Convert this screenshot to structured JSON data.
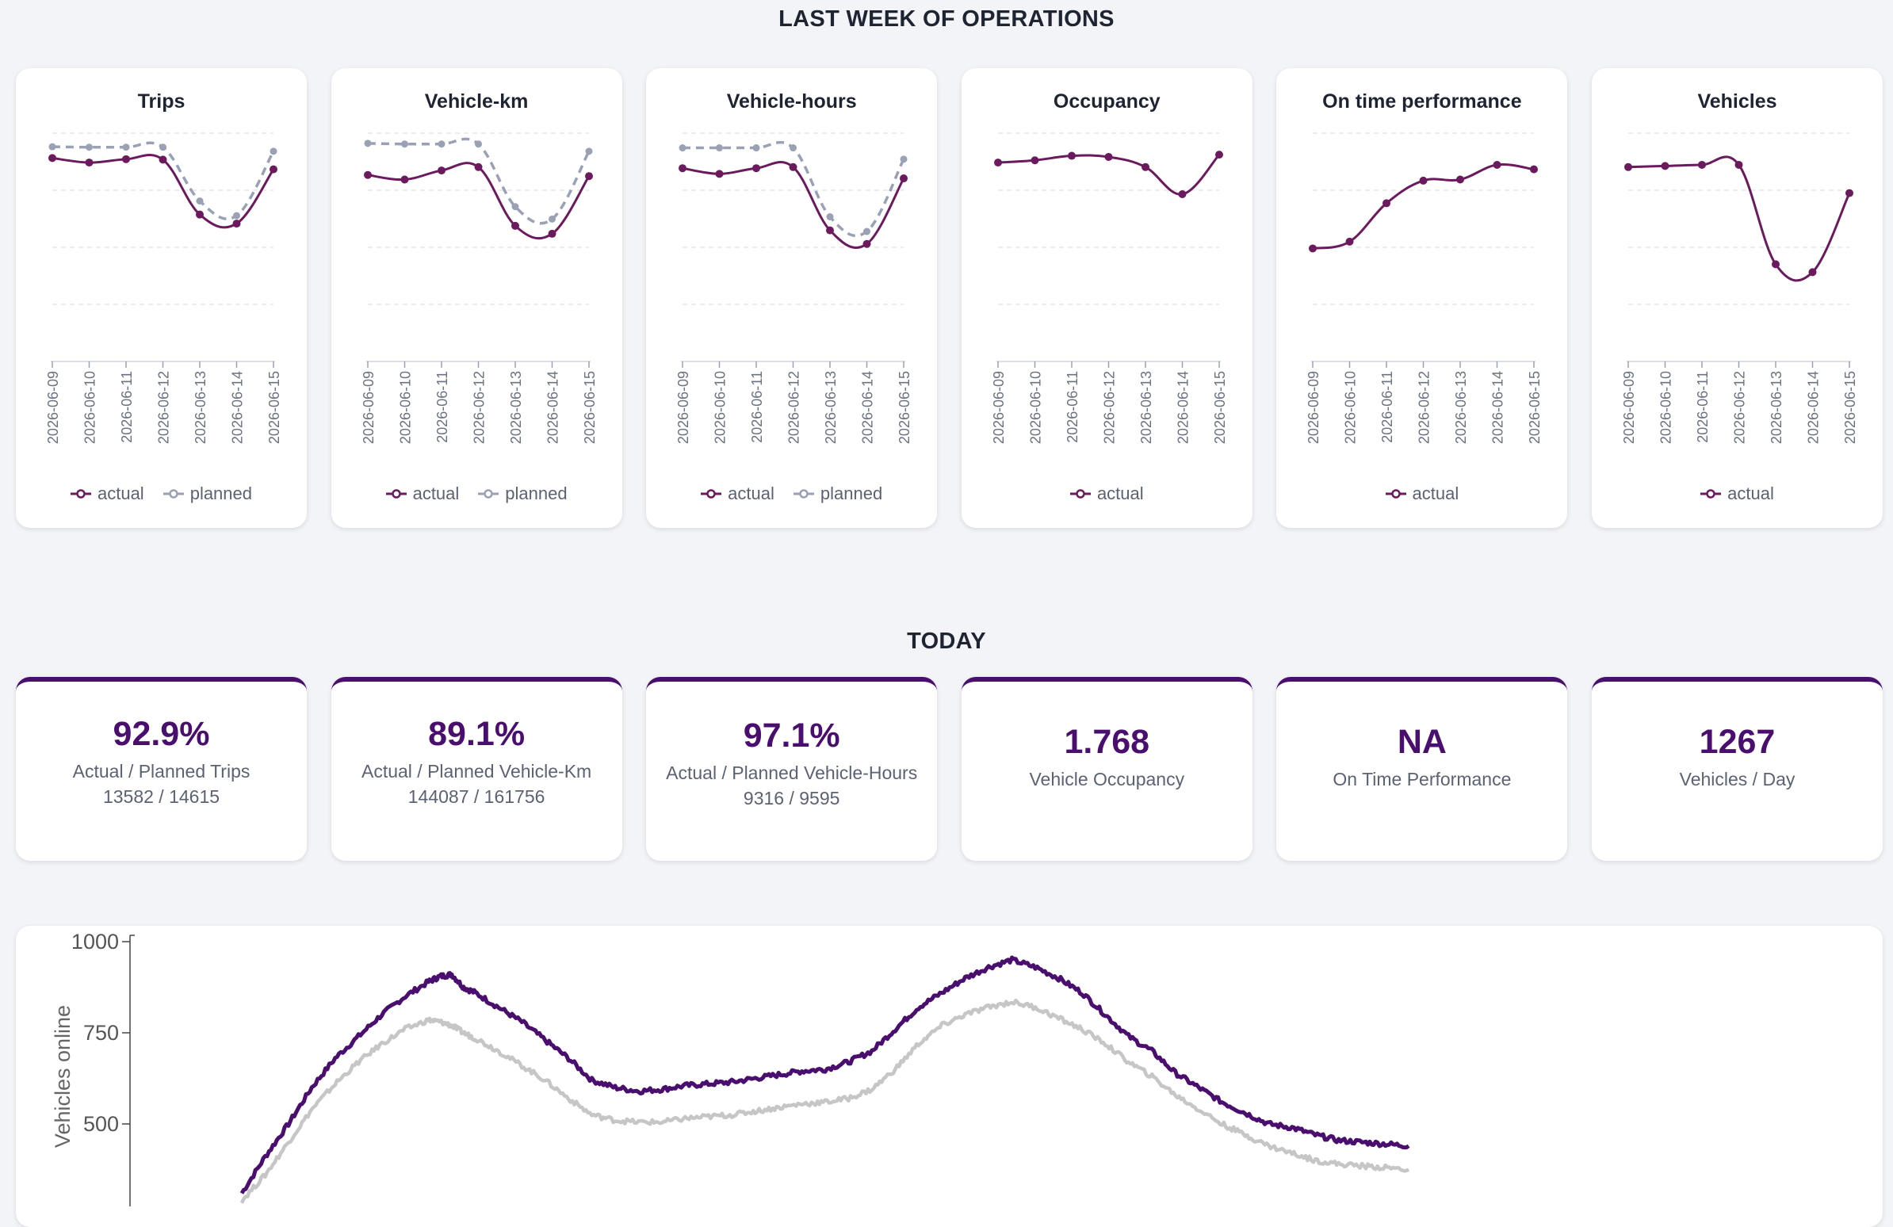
{
  "section_week_title": "LAST WEEK OF OPERATIONS",
  "section_today_title": "TODAY",
  "colors": {
    "actual": "#6b1a5e",
    "planned": "#9aa1b4",
    "kpi": "#4a0e6e",
    "grey_series": "#c6c6c6"
  },
  "weekly_charts": [
    {
      "title": "Trips",
      "legend": [
        "actual",
        "planned"
      ],
      "dates": [
        "2026-06-09",
        "2026-06-10",
        "2026-06-11",
        "2026-06-12",
        "2026-06-13",
        "2026-06-14",
        "2026-06-15"
      ],
      "actual": [
        0.9,
        0.88,
        0.895,
        0.893,
        0.65,
        0.61,
        0.85
      ],
      "planned": [
        0.95,
        0.948,
        0.948,
        0.948,
        0.71,
        0.645,
        0.93
      ]
    },
    {
      "title": "Vehicle-km",
      "legend": [
        "actual",
        "planned"
      ],
      "dates": [
        "2026-06-09",
        "2026-06-10",
        "2026-06-11",
        "2026-06-12",
        "2026-06-13",
        "2026-06-14",
        "2026-06-15"
      ],
      "actual": [
        0.825,
        0.805,
        0.845,
        0.86,
        0.6,
        0.565,
        0.82
      ],
      "planned": [
        0.965,
        0.962,
        0.962,
        0.962,
        0.685,
        0.63,
        0.93
      ]
    },
    {
      "title": "Vehicle-hours",
      "legend": [
        "actual",
        "planned"
      ],
      "dates": [
        "2026-06-09",
        "2026-06-10",
        "2026-06-11",
        "2026-06-12",
        "2026-06-13",
        "2026-06-14",
        "2026-06-15"
      ],
      "actual": [
        0.855,
        0.83,
        0.855,
        0.86,
        0.58,
        0.52,
        0.81
      ],
      "planned": [
        0.945,
        0.945,
        0.945,
        0.945,
        0.64,
        0.575,
        0.895
      ]
    },
    {
      "title": "Occupancy",
      "legend": [
        "actual"
      ],
      "dates": [
        "2026-06-09",
        "2026-06-10",
        "2026-06-11",
        "2026-06-12",
        "2026-06-13",
        "2026-06-14",
        "2026-06-15"
      ],
      "actual": [
        0.88,
        0.89,
        0.91,
        0.905,
        0.86,
        0.74,
        0.915
      ]
    },
    {
      "title": "On time performance",
      "legend": [
        "actual"
      ],
      "dates": [
        "2026-06-09",
        "2026-06-10",
        "2026-06-11",
        "2026-06-12",
        "2026-06-13",
        "2026-06-14",
        "2026-06-15"
      ],
      "actual": [
        0.5,
        0.53,
        0.7,
        0.8,
        0.805,
        0.87,
        0.85
      ]
    },
    {
      "title": "Vehicles",
      "legend": [
        "actual"
      ],
      "dates": [
        "2026-06-09",
        "2026-06-10",
        "2026-06-11",
        "2026-06-12",
        "2026-06-13",
        "2026-06-14",
        "2026-06-15"
      ],
      "actual": [
        0.86,
        0.865,
        0.87,
        0.87,
        0.43,
        0.395,
        0.745
      ]
    }
  ],
  "kpis": [
    {
      "value": "92.9%",
      "label": "Actual / Planned Trips",
      "sub": "13582 / 14615"
    },
    {
      "value": "89.1%",
      "label": "Actual / Planned Vehicle-Km",
      "sub": "144087 / 161756"
    },
    {
      "value": "97.1%",
      "label": "Actual / Planned Vehicle-Hours",
      "sub": "9316 / 9595"
    },
    {
      "value": "1.768",
      "label": "Vehicle Occupancy",
      "sub": ""
    },
    {
      "value": "NA",
      "label": "On Time Performance",
      "sub": ""
    },
    {
      "value": "1267",
      "label": "Vehicles / Day",
      "sub": ""
    }
  ],
  "chart_data": [
    {
      "type": "line",
      "title": "",
      "ylabel": "Vehicles online",
      "xlabel": "",
      "ylim": [
        300,
        1000
      ],
      "yticks": [
        1000,
        750,
        500
      ],
      "x_unit": "fraction of day",
      "series": [
        {
          "color": "#4a0e6e",
          "x": [
            0.0,
            0.02,
            0.04,
            0.06,
            0.08,
            0.1,
            0.12,
            0.14,
            0.16,
            0.17,
            0.18,
            0.19,
            0.2,
            0.22,
            0.24,
            0.26,
            0.28,
            0.3,
            0.32,
            0.34,
            0.36,
            0.38,
            0.4,
            0.42,
            0.44,
            0.46,
            0.48,
            0.5,
            0.52,
            0.54,
            0.56,
            0.58,
            0.6,
            0.62,
            0.64,
            0.66,
            0.68,
            0.7,
            0.72,
            0.74,
            0.76,
            0.78,
            0.8,
            0.82,
            0.84,
            0.86,
            0.88,
            0.9,
            0.92,
            0.94,
            0.96,
            0.98,
            1.0
          ],
          "y": [
            310,
            410,
            500,
            600,
            680,
            740,
            800,
            850,
            890,
            905,
            910,
            875,
            860,
            820,
            780,
            730,
            680,
            620,
            600,
            590,
            595,
            605,
            610,
            615,
            625,
            635,
            645,
            650,
            670,
            700,
            760,
            820,
            860,
            900,
            930,
            950,
            930,
            900,
            860,
            800,
            740,
            700,
            640,
            600,
            560,
            530,
            500,
            490,
            470,
            455,
            450,
            445,
            440
          ]
        },
        {
          "color": "#c6c6c6",
          "x": [
            0.0,
            0.02,
            0.04,
            0.06,
            0.08,
            0.1,
            0.12,
            0.14,
            0.16,
            0.17,
            0.18,
            0.19,
            0.2,
            0.22,
            0.24,
            0.26,
            0.28,
            0.3,
            0.32,
            0.34,
            0.36,
            0.38,
            0.4,
            0.42,
            0.44,
            0.46,
            0.48,
            0.5,
            0.52,
            0.54,
            0.56,
            0.58,
            0.6,
            0.62,
            0.64,
            0.66,
            0.68,
            0.7,
            0.72,
            0.74,
            0.76,
            0.78,
            0.8,
            0.82,
            0.84,
            0.86,
            0.88,
            0.9,
            0.92,
            0.94,
            0.96,
            0.98,
            1.0
          ],
          "y": [
            290,
            360,
            450,
            540,
            610,
            670,
            720,
            760,
            785,
            780,
            770,
            750,
            735,
            700,
            660,
            620,
            570,
            525,
            510,
            505,
            505,
            515,
            520,
            525,
            535,
            545,
            555,
            560,
            570,
            595,
            650,
            720,
            770,
            800,
            820,
            835,
            820,
            790,
            760,
            720,
            670,
            630,
            580,
            540,
            500,
            470,
            440,
            420,
            400,
            390,
            385,
            380,
            375
          ]
        }
      ]
    }
  ]
}
